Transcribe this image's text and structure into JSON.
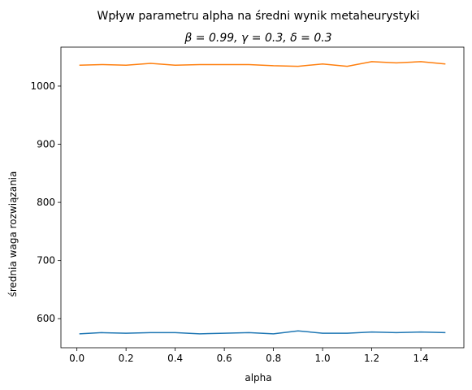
{
  "chart_data": {
    "type": "line",
    "title": "Wpływ parametru alpha na średni wynik metaheurystyki",
    "subtitle": "β = 0.99, γ = 0.3, δ = 0.3",
    "xlabel": "alpha",
    "ylabel": "średnia waga rozwiązania",
    "xlim": [
      -0.065,
      1.575
    ],
    "ylim": [
      550,
      1067
    ],
    "xticks": [
      0.0,
      0.2,
      0.4,
      0.6,
      0.8,
      1.0,
      1.2,
      1.4
    ],
    "xtick_labels": [
      "0.0",
      "0.2",
      "0.4",
      "0.6",
      "0.8",
      "1.0",
      "1.2",
      "1.4"
    ],
    "yticks": [
      600,
      700,
      800,
      900,
      1000
    ],
    "ytick_labels": [
      "600",
      "700",
      "800",
      "900",
      "1000"
    ],
    "grid": false,
    "x": [
      0.01,
      0.1,
      0.2,
      0.3,
      0.4,
      0.5,
      0.6,
      0.7,
      0.8,
      0.9,
      1.0,
      1.1,
      1.2,
      1.3,
      1.4,
      1.5
    ],
    "series": [
      {
        "color": "#1f77b4",
        "values": [
          574,
          576,
          575,
          576,
          576,
          574,
          575,
          576,
          574,
          579,
          575,
          575,
          577,
          576,
          577,
          576
        ]
      },
      {
        "color": "#ff7f0e",
        "values": [
          1036,
          1037,
          1036,
          1039,
          1036,
          1037,
          1037,
          1037,
          1035,
          1034,
          1038,
          1034,
          1042,
          1040,
          1042,
          1038
        ]
      }
    ]
  }
}
